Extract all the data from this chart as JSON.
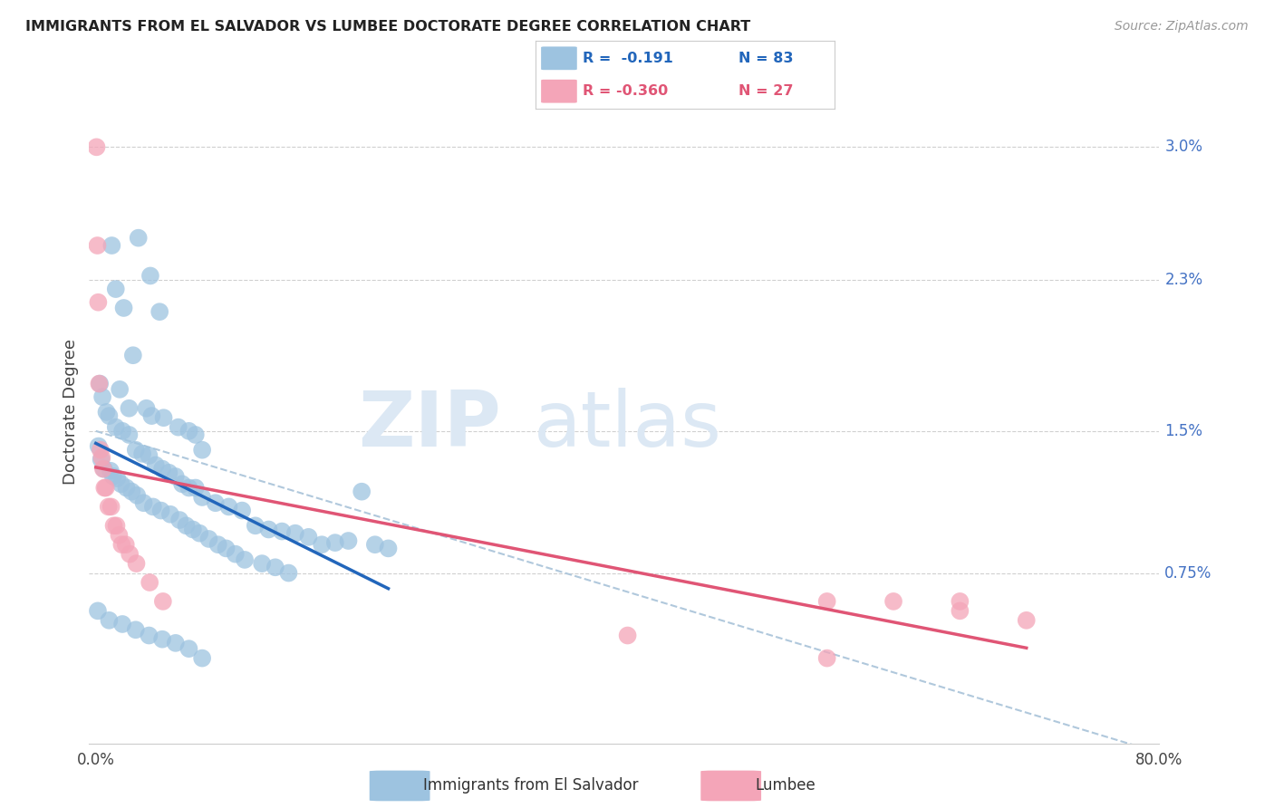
{
  "title": "IMMIGRANTS FROM EL SALVADOR VS LUMBEE DOCTORATE DEGREE CORRELATION CHART",
  "source": "Source: ZipAtlas.com",
  "ylabel_left": "Doctorate Degree",
  "y_ticks_right": [
    0.0075,
    0.015,
    0.023,
    0.03
  ],
  "y_tick_labels_right": [
    "0.75%",
    "1.5%",
    "2.3%",
    "3.0%"
  ],
  "y_max": 0.0335,
  "y_min": -0.0015,
  "x_max": 80.0,
  "x_min": -0.5,
  "blue_color": "#9dc3e0",
  "pink_color": "#f4a5b8",
  "blue_line_color": "#2266bb",
  "pink_line_color": "#e05575",
  "dash_color": "#b0c8dc",
  "title_color": "#222222",
  "source_color": "#999999",
  "right_axis_color": "#4472c4",
  "watermark_zip_color": "#dce8f4",
  "watermark_atlas_color": "#dce8f4",
  "grid_color": "#d0d0d0",
  "legend_r_blue": "R =  -0.191",
  "legend_n_blue": "N = 83",
  "legend_r_pink": "R = -0.360",
  "legend_n_pink": "N = 27",
  "blue_scatter": [
    [
      1.2,
      0.0248
    ],
    [
      1.5,
      0.0225
    ],
    [
      2.1,
      0.0215
    ],
    [
      3.2,
      0.0252
    ],
    [
      4.1,
      0.0232
    ],
    [
      4.8,
      0.0213
    ],
    [
      1.8,
      0.0172
    ],
    [
      2.5,
      0.0162
    ],
    [
      3.8,
      0.0162
    ],
    [
      4.2,
      0.0158
    ],
    [
      5.1,
      0.0157
    ],
    [
      6.2,
      0.0152
    ],
    [
      7.0,
      0.015
    ],
    [
      7.5,
      0.0148
    ],
    [
      8.0,
      0.014
    ],
    [
      2.8,
      0.019
    ],
    [
      0.3,
      0.0175
    ],
    [
      0.5,
      0.0168
    ],
    [
      0.8,
      0.016
    ],
    [
      1.0,
      0.0158
    ],
    [
      1.5,
      0.0152
    ],
    [
      2.0,
      0.015
    ],
    [
      2.5,
      0.0148
    ],
    [
      3.0,
      0.014
    ],
    [
      3.5,
      0.0138
    ],
    [
      4.0,
      0.0137
    ],
    [
      4.5,
      0.0132
    ],
    [
      5.0,
      0.013
    ],
    [
      5.5,
      0.0128
    ],
    [
      6.0,
      0.0126
    ],
    [
      6.5,
      0.0122
    ],
    [
      7.0,
      0.012
    ],
    [
      7.5,
      0.012
    ],
    [
      8.0,
      0.0115
    ],
    [
      9.0,
      0.0112
    ],
    [
      10.0,
      0.011
    ],
    [
      11.0,
      0.0108
    ],
    [
      12.0,
      0.01
    ],
    [
      13.0,
      0.0098
    ],
    [
      14.0,
      0.0097
    ],
    [
      15.0,
      0.0096
    ],
    [
      16.0,
      0.0094
    ],
    [
      17.0,
      0.009
    ],
    [
      18.0,
      0.0091
    ],
    [
      19.0,
      0.0092
    ],
    [
      20.0,
      0.0118
    ],
    [
      21.0,
      0.009
    ],
    [
      22.0,
      0.0088
    ],
    [
      0.2,
      0.0142
    ],
    [
      0.4,
      0.0135
    ],
    [
      0.6,
      0.013
    ],
    [
      1.1,
      0.0129
    ],
    [
      1.3,
      0.0126
    ],
    [
      1.6,
      0.0125
    ],
    [
      1.9,
      0.0122
    ],
    [
      2.3,
      0.012
    ],
    [
      2.7,
      0.0118
    ],
    [
      3.1,
      0.0116
    ],
    [
      3.6,
      0.0112
    ],
    [
      4.3,
      0.011
    ],
    [
      4.9,
      0.0108
    ],
    [
      5.6,
      0.0106
    ],
    [
      6.3,
      0.0103
    ],
    [
      6.8,
      0.01
    ],
    [
      7.3,
      0.0098
    ],
    [
      7.8,
      0.0096
    ],
    [
      8.5,
      0.0093
    ],
    [
      9.2,
      0.009
    ],
    [
      9.8,
      0.0088
    ],
    [
      10.5,
      0.0085
    ],
    [
      11.2,
      0.0082
    ],
    [
      12.5,
      0.008
    ],
    [
      13.5,
      0.0078
    ],
    [
      14.5,
      0.0075
    ],
    [
      0.15,
      0.0055
    ],
    [
      1.0,
      0.005
    ],
    [
      2.0,
      0.0048
    ],
    [
      3.0,
      0.0045
    ],
    [
      4.0,
      0.0042
    ],
    [
      5.0,
      0.004
    ],
    [
      6.0,
      0.0038
    ],
    [
      7.0,
      0.0035
    ],
    [
      8.0,
      0.003
    ]
  ],
  "pink_scatter": [
    [
      0.05,
      0.03
    ],
    [
      0.12,
      0.0248
    ],
    [
      0.18,
      0.0218
    ],
    [
      0.25,
      0.0175
    ],
    [
      0.35,
      0.014
    ],
    [
      0.45,
      0.0136
    ],
    [
      0.55,
      0.013
    ],
    [
      0.65,
      0.012
    ],
    [
      0.75,
      0.012
    ],
    [
      0.95,
      0.011
    ],
    [
      1.15,
      0.011
    ],
    [
      1.35,
      0.01
    ],
    [
      1.55,
      0.01
    ],
    [
      1.75,
      0.0095
    ],
    [
      1.95,
      0.009
    ],
    [
      2.25,
      0.009
    ],
    [
      2.55,
      0.0085
    ],
    [
      3.05,
      0.008
    ],
    [
      4.05,
      0.007
    ],
    [
      5.05,
      0.006
    ],
    [
      40.0,
      0.0042
    ],
    [
      55.0,
      0.006
    ],
    [
      60.0,
      0.006
    ],
    [
      65.0,
      0.0055
    ],
    [
      70.0,
      0.005
    ],
    [
      55.0,
      0.003
    ],
    [
      65.0,
      0.006
    ]
  ]
}
